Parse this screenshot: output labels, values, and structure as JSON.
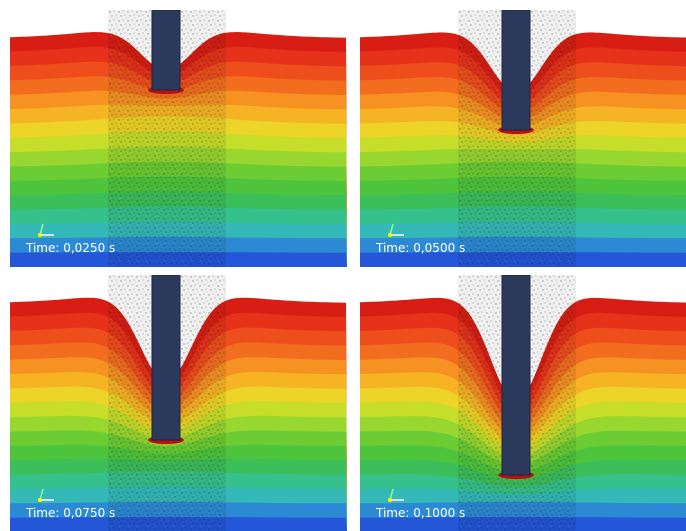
{
  "panels": [
    {
      "time_label": "Time: 0,0250 s"
    },
    {
      "time_label": "Time: 0,0500 s"
    },
    {
      "time_label": "Time: 0,0750 s"
    },
    {
      "time_label": "Time: 0,1000 s"
    }
  ]
}
